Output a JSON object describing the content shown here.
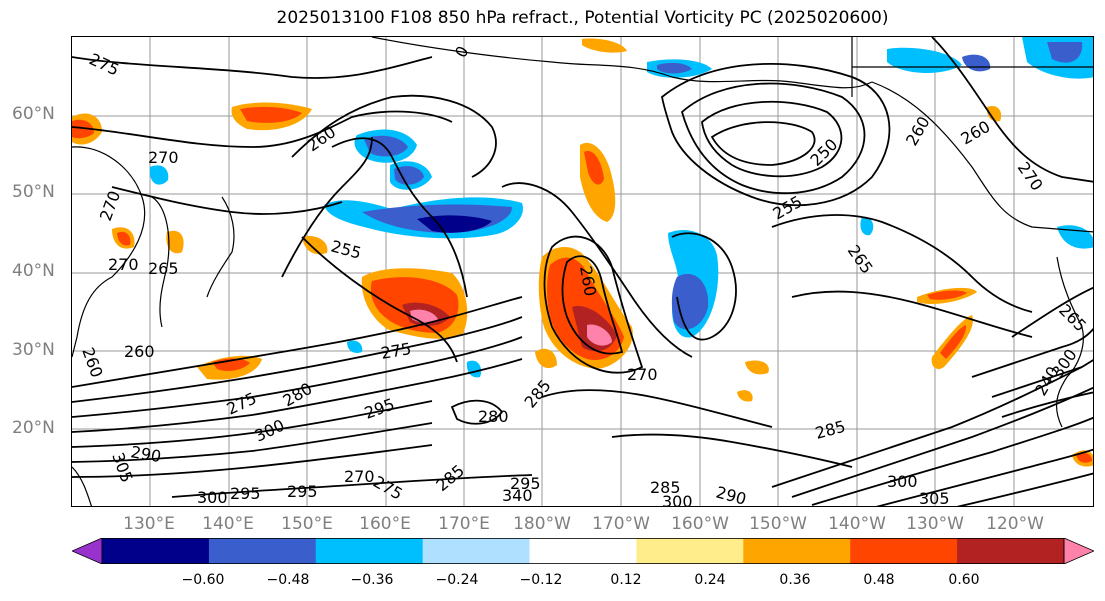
{
  "title": "2025013100 F108 850 hPa refract., Potential Vorticity PC (2025020600)",
  "lat_labels": [
    "60°N",
    "50°N",
    "40°N",
    "30°N",
    "20°N"
  ],
  "lon_labels": [
    "130°E",
    "140°E",
    "150°E",
    "160°E",
    "170°E",
    "180°W",
    "170°W",
    "160°W",
    "150°W",
    "140°W",
    "130°W",
    "120°W"
  ],
  "colorbar": {
    "ticks": [
      "−0.60",
      "−0.48",
      "−0.36",
      "−0.24",
      "−0.12",
      "0.12",
      "0.24",
      "0.36",
      "0.48",
      "0.60"
    ],
    "colors": [
      "#9932cc",
      "#00008b",
      "#3a5fcd",
      "#00bfff",
      "#b0e0ff",
      "#ffffff",
      "#ffec8b",
      "#ffa500",
      "#ff4500",
      "#b22222",
      "#ff82ab"
    ]
  },
  "contour_labels": [
    "275",
    "0",
    "270",
    "270",
    "260",
    "250",
    "260",
    "260",
    "270",
    "255",
    "255",
    "265",
    "270",
    "265",
    "260",
    "260",
    "260",
    "270",
    "275",
    "280",
    "285",
    "280",
    "295",
    "275",
    "300",
    "290",
    "285",
    "305",
    "300",
    "295",
    "295",
    "270",
    "275",
    "285",
    "340",
    "295",
    "285",
    "300",
    "290",
    "300",
    "305",
    "240",
    "300",
    "265"
  ]
}
